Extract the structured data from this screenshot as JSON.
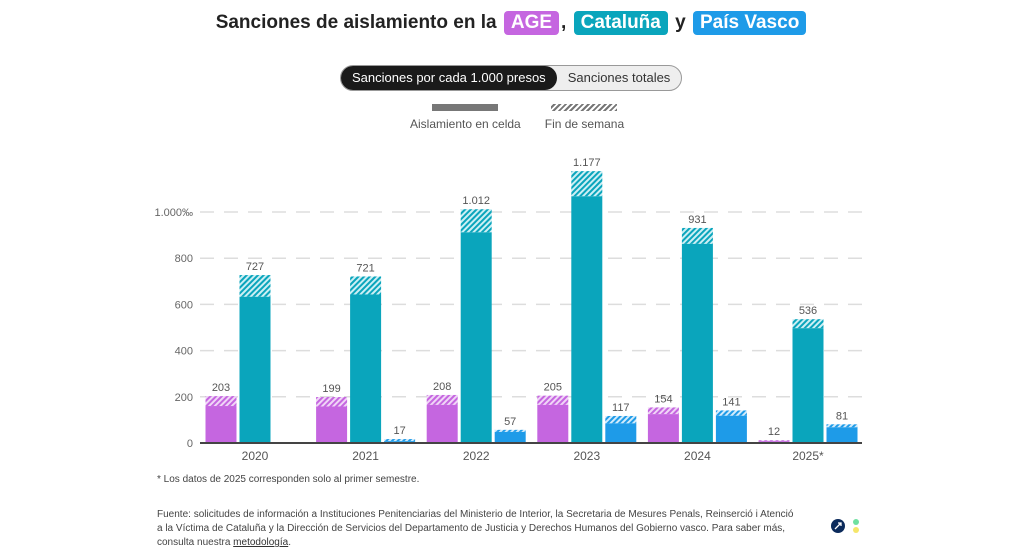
{
  "title": {
    "prefix": "Sanciones de aislamiento en la",
    "t1": "AGE",
    "sep": ",",
    "t2": "Cataluña",
    "and": "y",
    "t3": "País Vasco"
  },
  "toggle": {
    "opt1": "Sanciones por cada 1.000 presos",
    "opt2": "Sanciones totales"
  },
  "legend": {
    "solid": "Aislamiento en celda",
    "hatched": "Fin de semana"
  },
  "colors": {
    "AGE": "#c566e0",
    "Cataluña": "#0aa5bc",
    "País Vasco": "#1e9be8"
  },
  "chart_data": {
    "type": "bar",
    "stacked": true,
    "categories": [
      "2020",
      "2021",
      "2022",
      "2023",
      "2024",
      "2025*"
    ],
    "ylim": [
      0,
      1200
    ],
    "yticks": [
      0,
      200,
      400,
      600,
      800,
      1000
    ],
    "ytick_labels": [
      "0",
      "200",
      "400",
      "600",
      "800",
      "1.000‰"
    ],
    "series": [
      {
        "name": "AGE",
        "total": [
          203,
          199,
          208,
          205,
          154,
          12
        ],
        "celda": [
          160,
          158,
          165,
          165,
          125,
          8
        ],
        "labels": [
          "203",
          "199",
          "208",
          "205",
          "154",
          "12"
        ]
      },
      {
        "name": "Cataluña",
        "total": [
          727,
          721,
          1012,
          1177,
          931,
          536
        ],
        "celda": [
          633,
          643,
          912,
          1068,
          862,
          497
        ],
        "labels": [
          "727",
          "721",
          "1.012",
          "1.177",
          "931",
          "536"
        ]
      },
      {
        "name": "País Vasco",
        "total": [
          null,
          17,
          57,
          117,
          141,
          81
        ],
        "celda": [
          null,
          8,
          48,
          85,
          118,
          68
        ],
        "labels": [
          "",
          "17",
          "57",
          "117",
          "141",
          "81"
        ]
      }
    ]
  },
  "note": "* Los datos de 2025 corresponden solo al primer semestre.",
  "source": {
    "text": "Fuente: solicitudes de información a Instituciones Penitenciarias del Ministerio de Interior, la Secretaria de Mesures Penals, Reinserció i Atenció a la Víctima de Cataluña y la Dirección de Servicios del Departamento de Justicia y Derechos Humanos del Gobierno vasco. Para saber más, consulta nuestra ",
    "link": "metodología",
    "end": "."
  }
}
